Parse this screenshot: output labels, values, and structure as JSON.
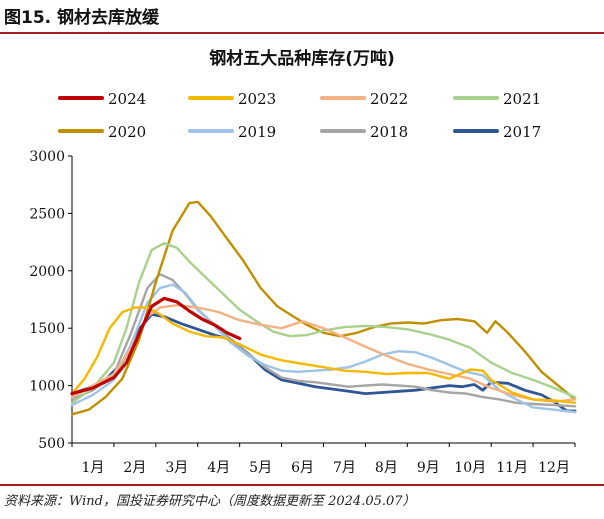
{
  "figure_label": "图15. 钢材去库放缓",
  "source": "资料来源：Wind，国投证券研究中心（周度数据更新至 2024.05.07）",
  "chart_data": {
    "type": "line",
    "title": "钢材五大品种库存(万吨)",
    "xlabel": "",
    "ylabel": "",
    "ylim": [
      500,
      3000
    ],
    "yticks": [
      500,
      1000,
      1500,
      2000,
      2500,
      3000
    ],
    "xlim": [
      1,
      13
    ],
    "xticks": [
      "1月",
      "2月",
      "3月",
      "4月",
      "5月",
      "6月",
      "7月",
      "8月",
      "9月",
      "10月",
      "11月",
      "12月"
    ],
    "grid": false,
    "legend_position": "top",
    "series": [
      {
        "name": "2024",
        "color": "#c00000",
        "width": 3.2,
        "points": [
          [
            1.0,
            930
          ],
          [
            1.5,
            980
          ],
          [
            2.0,
            1070
          ],
          [
            2.3,
            1200
          ],
          [
            2.6,
            1450
          ],
          [
            2.9,
            1690
          ],
          [
            3.2,
            1760
          ],
          [
            3.5,
            1730
          ],
          [
            3.8,
            1650
          ],
          [
            4.1,
            1580
          ],
          [
            4.4,
            1530
          ],
          [
            4.7,
            1460
          ],
          [
            5.0,
            1410
          ]
        ]
      },
      {
        "name": "2023",
        "color": "#f5b800",
        "width": 2.4,
        "points": [
          [
            1.0,
            930
          ],
          [
            1.3,
            1060
          ],
          [
            1.6,
            1250
          ],
          [
            1.9,
            1500
          ],
          [
            2.2,
            1640
          ],
          [
            2.5,
            1680
          ],
          [
            2.8,
            1680
          ],
          [
            3.1,
            1620
          ],
          [
            3.4,
            1540
          ],
          [
            3.8,
            1470
          ],
          [
            4.2,
            1430
          ],
          [
            4.6,
            1420
          ],
          [
            5.0,
            1360
          ],
          [
            5.5,
            1270
          ],
          [
            6.0,
            1220
          ],
          [
            6.5,
            1190
          ],
          [
            7.0,
            1160
          ],
          [
            7.5,
            1130
          ],
          [
            8.0,
            1120
          ],
          [
            8.5,
            1100
          ],
          [
            9.0,
            1110
          ],
          [
            9.5,
            1110
          ],
          [
            10.0,
            1060
          ],
          [
            10.5,
            1140
          ],
          [
            10.8,
            1130
          ],
          [
            11.0,
            1050
          ],
          [
            11.5,
            940
          ],
          [
            12.0,
            880
          ],
          [
            12.5,
            870
          ],
          [
            13.0,
            850
          ]
        ]
      },
      {
        "name": "2022",
        "color": "#f4b183",
        "width": 2.4,
        "points": [
          [
            1.0,
            900
          ],
          [
            1.5,
            1000
          ],
          [
            2.0,
            1100
          ],
          [
            2.4,
            1320
          ],
          [
            2.8,
            1600
          ],
          [
            3.1,
            1680
          ],
          [
            3.5,
            1700
          ],
          [
            4.0,
            1680
          ],
          [
            4.5,
            1640
          ],
          [
            5.0,
            1570
          ],
          [
            5.5,
            1530
          ],
          [
            6.0,
            1500
          ],
          [
            6.5,
            1560
          ],
          [
            7.0,
            1500
          ],
          [
            7.5,
            1420
          ],
          [
            8.0,
            1340
          ],
          [
            8.5,
            1260
          ],
          [
            9.0,
            1190
          ],
          [
            9.5,
            1140
          ],
          [
            10.0,
            1100
          ],
          [
            10.5,
            1060
          ],
          [
            11.0,
            980
          ],
          [
            11.5,
            920
          ],
          [
            12.0,
            880
          ],
          [
            12.5,
            860
          ],
          [
            13.0,
            880
          ]
        ]
      },
      {
        "name": "2021",
        "color": "#a9d18e",
        "width": 2.4,
        "points": [
          [
            1.0,
            850
          ],
          [
            1.5,
            980
          ],
          [
            2.0,
            1200
          ],
          [
            2.3,
            1500
          ],
          [
            2.6,
            1900
          ],
          [
            2.9,
            2180
          ],
          [
            3.2,
            2240
          ],
          [
            3.5,
            2200
          ],
          [
            3.8,
            2080
          ],
          [
            4.2,
            1940
          ],
          [
            4.6,
            1800
          ],
          [
            5.0,
            1660
          ],
          [
            5.4,
            1560
          ],
          [
            5.8,
            1470
          ],
          [
            6.2,
            1430
          ],
          [
            6.6,
            1440
          ],
          [
            7.0,
            1480
          ],
          [
            7.5,
            1510
          ],
          [
            8.0,
            1520
          ],
          [
            8.5,
            1510
          ],
          [
            9.0,
            1490
          ],
          [
            9.5,
            1450
          ],
          [
            10.0,
            1400
          ],
          [
            10.5,
            1330
          ],
          [
            11.0,
            1200
          ],
          [
            11.5,
            1110
          ],
          [
            12.0,
            1050
          ],
          [
            12.5,
            980
          ],
          [
            13.0,
            900
          ]
        ]
      },
      {
        "name": "2020",
        "color": "#bf8f00",
        "width": 2.4,
        "points": [
          [
            1.0,
            750
          ],
          [
            1.4,
            790
          ],
          [
            1.8,
            900
          ],
          [
            2.2,
            1060
          ],
          [
            2.6,
            1400
          ],
          [
            3.0,
            1900
          ],
          [
            3.4,
            2350
          ],
          [
            3.8,
            2590
          ],
          [
            4.0,
            2600
          ],
          [
            4.3,
            2480
          ],
          [
            4.7,
            2280
          ],
          [
            5.1,
            2080
          ],
          [
            5.5,
            1850
          ],
          [
            5.9,
            1690
          ],
          [
            6.2,
            1620
          ],
          [
            6.6,
            1530
          ],
          [
            7.0,
            1460
          ],
          [
            7.4,
            1430
          ],
          [
            7.8,
            1460
          ],
          [
            8.2,
            1510
          ],
          [
            8.6,
            1540
          ],
          [
            9.0,
            1550
          ],
          [
            9.4,
            1540
          ],
          [
            9.8,
            1570
          ],
          [
            10.2,
            1580
          ],
          [
            10.6,
            1560
          ],
          [
            10.9,
            1460
          ],
          [
            11.1,
            1560
          ],
          [
            11.4,
            1460
          ],
          [
            11.8,
            1300
          ],
          [
            12.2,
            1120
          ],
          [
            12.6,
            1000
          ],
          [
            13.0,
            880
          ]
        ]
      },
      {
        "name": "2019",
        "color": "#9dc3e6",
        "width": 2.4,
        "points": [
          [
            1.0,
            830
          ],
          [
            1.5,
            920
          ],
          [
            2.0,
            1050
          ],
          [
            2.4,
            1350
          ],
          [
            2.8,
            1720
          ],
          [
            3.1,
            1850
          ],
          [
            3.4,
            1880
          ],
          [
            3.7,
            1810
          ],
          [
            4.0,
            1670
          ],
          [
            4.4,
            1520
          ],
          [
            4.8,
            1370
          ],
          [
            5.2,
            1260
          ],
          [
            5.6,
            1180
          ],
          [
            6.0,
            1130
          ],
          [
            6.4,
            1120
          ],
          [
            6.8,
            1130
          ],
          [
            7.2,
            1140
          ],
          [
            7.6,
            1160
          ],
          [
            8.0,
            1210
          ],
          [
            8.4,
            1270
          ],
          [
            8.8,
            1300
          ],
          [
            9.2,
            1290
          ],
          [
            9.6,
            1240
          ],
          [
            10.0,
            1180
          ],
          [
            10.4,
            1120
          ],
          [
            10.8,
            1090
          ],
          [
            11.2,
            960
          ],
          [
            11.6,
            880
          ],
          [
            12.0,
            810
          ],
          [
            12.5,
            790
          ],
          [
            13.0,
            770
          ]
        ]
      },
      {
        "name": "2018",
        "color": "#a5a5a5",
        "width": 2.4,
        "points": [
          [
            1.0,
            880
          ],
          [
            1.5,
            960
          ],
          [
            2.0,
            1100
          ],
          [
            2.4,
            1450
          ],
          [
            2.8,
            1850
          ],
          [
            3.1,
            1970
          ],
          [
            3.4,
            1920
          ],
          [
            3.7,
            1800
          ],
          [
            4.0,
            1660
          ],
          [
            4.4,
            1530
          ],
          [
            4.8,
            1400
          ],
          [
            5.2,
            1280
          ],
          [
            5.6,
            1160
          ],
          [
            6.0,
            1070
          ],
          [
            6.4,
            1040
          ],
          [
            6.8,
            1030
          ],
          [
            7.2,
            1010
          ],
          [
            7.6,
            990
          ],
          [
            8.0,
            1000
          ],
          [
            8.4,
            1010
          ],
          [
            8.8,
            1000
          ],
          [
            9.2,
            990
          ],
          [
            9.6,
            960
          ],
          [
            10.0,
            940
          ],
          [
            10.4,
            930
          ],
          [
            10.8,
            900
          ],
          [
            11.2,
            880
          ],
          [
            11.6,
            850
          ],
          [
            12.0,
            840
          ],
          [
            12.5,
            830
          ],
          [
            13.0,
            820
          ]
        ]
      },
      {
        "name": "2017",
        "color": "#2f5597",
        "width": 2.8,
        "points": [
          [
            1.0,
            930
          ],
          [
            1.4,
            980
          ],
          [
            1.8,
            1050
          ],
          [
            2.2,
            1200
          ],
          [
            2.6,
            1490
          ],
          [
            2.9,
            1620
          ],
          [
            3.2,
            1600
          ],
          [
            3.6,
            1540
          ],
          [
            4.0,
            1490
          ],
          [
            4.4,
            1440
          ],
          [
            4.8,
            1400
          ],
          [
            5.2,
            1280
          ],
          [
            5.6,
            1140
          ],
          [
            6.0,
            1050
          ],
          [
            6.4,
            1020
          ],
          [
            6.8,
            990
          ],
          [
            7.2,
            970
          ],
          [
            7.6,
            950
          ],
          [
            8.0,
            930
          ],
          [
            8.4,
            940
          ],
          [
            8.8,
            950
          ],
          [
            9.2,
            960
          ],
          [
            9.6,
            980
          ],
          [
            10.0,
            1000
          ],
          [
            10.3,
            990
          ],
          [
            10.6,
            1010
          ],
          [
            10.8,
            960
          ],
          [
            11.0,
            1030
          ],
          [
            11.4,
            1020
          ],
          [
            11.8,
            960
          ],
          [
            12.2,
            920
          ],
          [
            12.5,
            860
          ],
          [
            12.8,
            780
          ],
          [
            13.0,
            780
          ]
        ]
      }
    ]
  }
}
